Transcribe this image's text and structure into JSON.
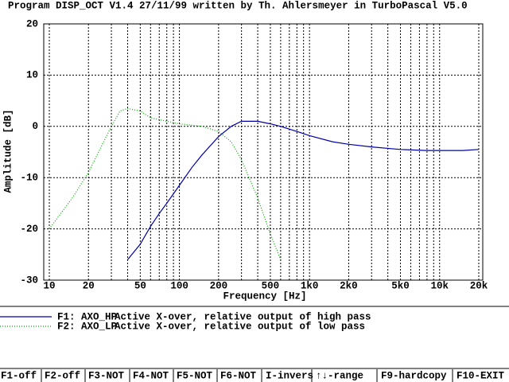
{
  "chart_data": {
    "type": "line",
    "title": "Program DISP_OCT V1.4 27/11/99 written by Th. Ahlersmeyer in TurboPascal V5.0",
    "xlabel": "Frequency [Hz]",
    "ylabel": "Amplitude [dB]",
    "xscale": "log",
    "grid": true,
    "xlim": [
      10,
      20000
    ],
    "ylim": [
      -30,
      20
    ],
    "yticks": [
      -30,
      -20,
      -10,
      0,
      10,
      20
    ],
    "xticks": [
      10,
      20,
      50,
      100,
      200,
      500,
      {
        "value": 1000,
        "label": "1k0"
      },
      {
        "value": 2000,
        "label": "2k0"
      },
      {
        "value": 5000,
        "label": "5k0"
      },
      {
        "value": 10000,
        "label": "10k"
      },
      {
        "value": 20000,
        "label": "20k"
      }
    ],
    "minor_xticks": [
      30,
      40,
      60,
      70,
      80,
      90,
      300,
      400,
      600,
      700,
      800,
      900,
      3000,
      4000,
      6000,
      7000,
      8000,
      9000
    ],
    "series": [
      {
        "name": "F1: AXO_HP",
        "description": "Active X-over, relative output of high pass",
        "color": "#0000a8",
        "style": "solid",
        "x": [
          40,
          50,
          60,
          70,
          80,
          100,
          125,
          150,
          200,
          250,
          300,
          400,
          500,
          600,
          800,
          1000,
          1500,
          2000,
          3000,
          5000,
          8000,
          10000,
          15000,
          20000
        ],
        "values": [
          -26,
          -23,
          -19.5,
          -17,
          -15,
          -11.5,
          -8,
          -5.5,
          -2,
          0,
          1,
          1,
          0.5,
          0,
          -1,
          -1.8,
          -3,
          -3.5,
          -4,
          -4.5,
          -4.7,
          -4.7,
          -4.7,
          -4.5
        ]
      },
      {
        "name": "F2: AXO_LP",
        "description": "Active X-over, relative output of low pass",
        "color": "#00a800",
        "style": "dotted",
        "x": [
          10,
          15,
          20,
          25,
          30,
          35,
          40,
          50,
          60,
          80,
          100,
          150,
          200,
          250,
          300,
          400,
          500,
          600
        ],
        "values": [
          -20,
          -14,
          -9,
          -4,
          0,
          3,
          3.5,
          3,
          1.7,
          1,
          0.5,
          0,
          -1,
          -3,
          -6.5,
          -14,
          -21,
          -26
        ]
      }
    ]
  },
  "function_keys": [
    "F1-off",
    "F2-off",
    "F3-NOT",
    "F4-NOT",
    "F5-NOT",
    "F6-NOT",
    "I-invers",
    "↑↓-range",
    "F9-hardcopy",
    "F10-EXIT"
  ]
}
